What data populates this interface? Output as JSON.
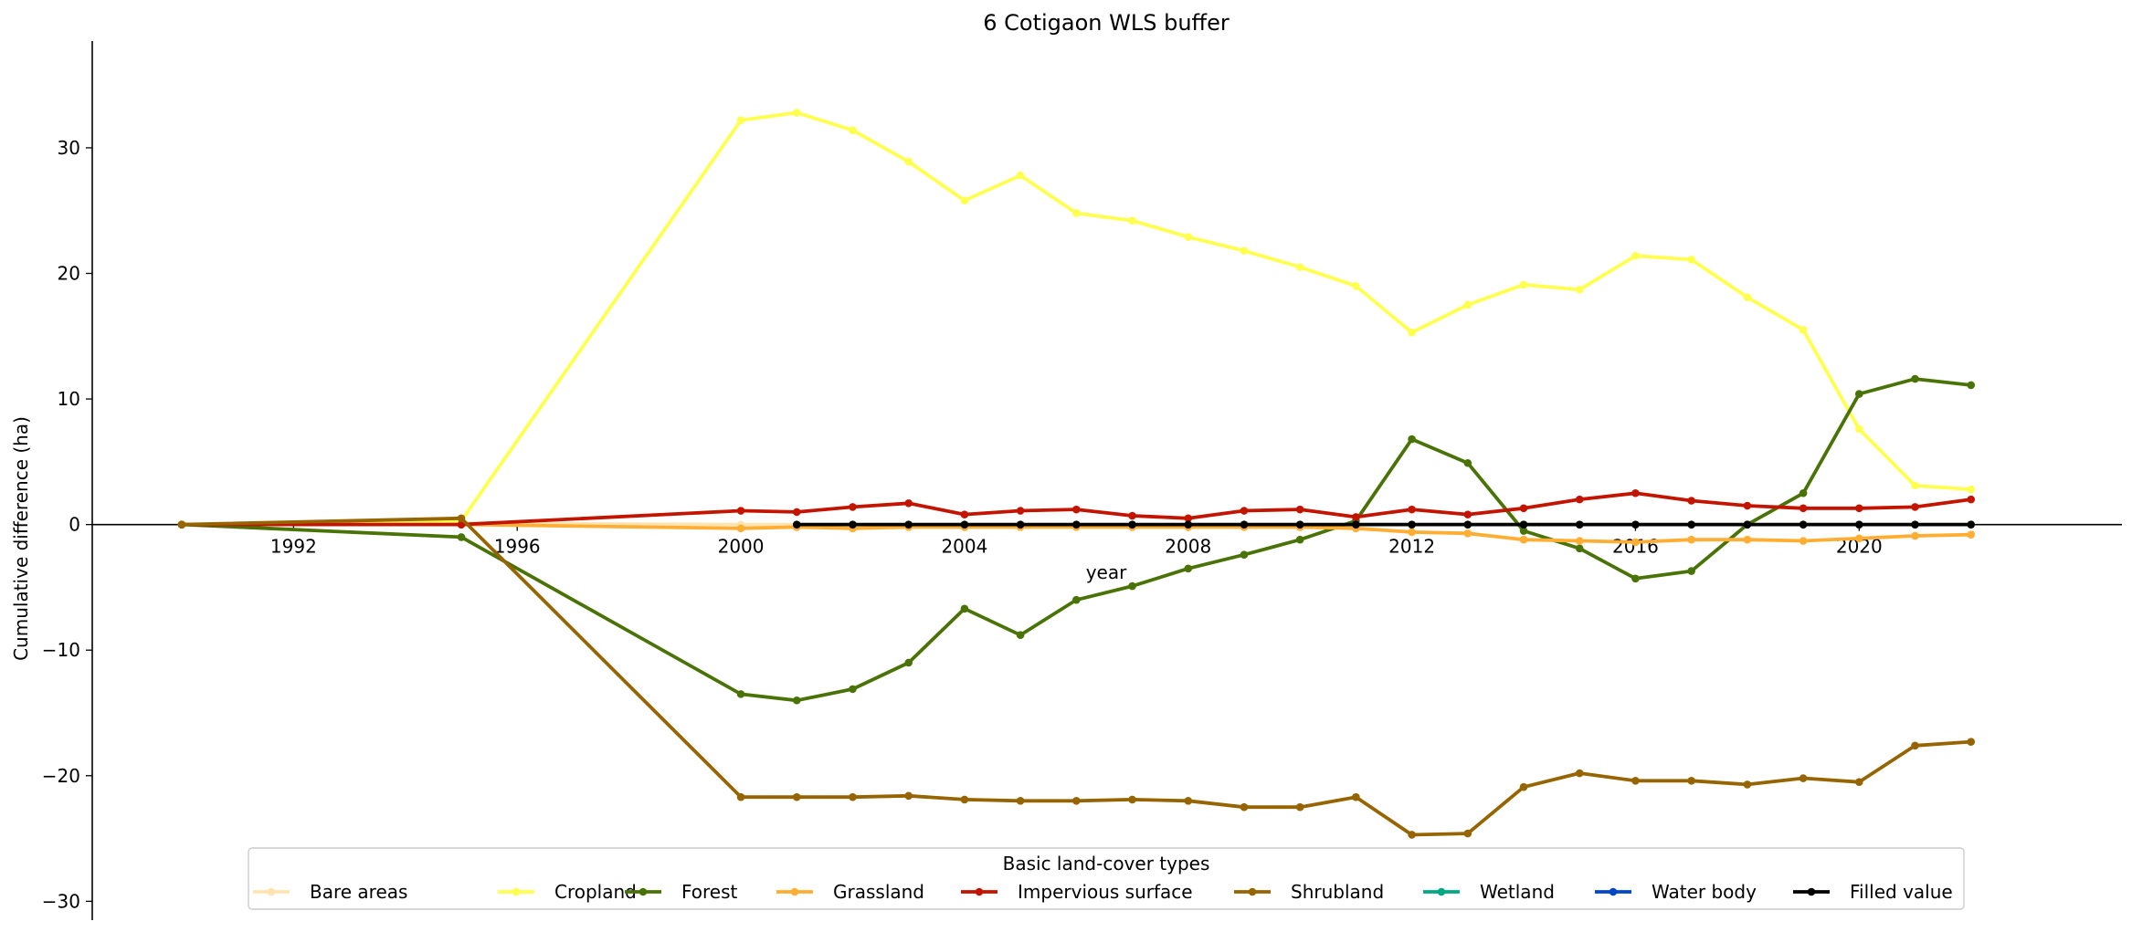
{
  "chart_data": {
    "type": "line",
    "title": "6 Cotigaon WLS buffer",
    "xlabel": "year",
    "ylabel": "Cumulative difference (ha)",
    "xlim": [
      1988.4,
      2024.7
    ],
    "ylim": [
      -31.5,
      38.5
    ],
    "xticks": [
      1992,
      1996,
      2000,
      2004,
      2008,
      2012,
      2016,
      2020
    ],
    "yticks": [
      -30,
      -20,
      -10,
      0,
      10,
      20,
      30
    ],
    "ytick_labels": [
      "−30",
      "−20",
      "−10",
      "0",
      "10",
      "20",
      "30"
    ],
    "legend": {
      "title": "Basic land-cover types",
      "position": "bottom-center"
    },
    "series": [
      {
        "name": "Bare areas",
        "color": "#ffe4b2",
        "points": [
          [
            1990,
            0
          ],
          [
            1995,
            0.1
          ],
          [
            2000,
            0
          ],
          [
            2001,
            0
          ],
          [
            2002,
            0
          ],
          [
            2003,
            0
          ],
          [
            2004,
            0
          ],
          [
            2005,
            0
          ],
          [
            2006,
            0
          ],
          [
            2007,
            0
          ],
          [
            2008,
            0
          ],
          [
            2009,
            0
          ],
          [
            2010,
            0
          ],
          [
            2011,
            0
          ],
          [
            2012,
            0
          ],
          [
            2013,
            0
          ],
          [
            2014,
            0
          ],
          [
            2015,
            0
          ],
          [
            2016,
            0
          ],
          [
            2017,
            0
          ],
          [
            2018,
            0
          ],
          [
            2019,
            0
          ],
          [
            2020,
            0
          ],
          [
            2021,
            0
          ],
          [
            2022,
            0
          ]
        ]
      },
      {
        "name": "Cropland",
        "color": "#ffff4d",
        "points": [
          [
            1990,
            0
          ],
          [
            1995,
            0.3
          ],
          [
            2000,
            32.2
          ],
          [
            2001,
            32.8
          ],
          [
            2002,
            31.4
          ],
          [
            2003,
            28.9
          ],
          [
            2004,
            25.8
          ],
          [
            2005,
            27.8
          ],
          [
            2006,
            24.8
          ],
          [
            2007,
            24.2
          ],
          [
            2008,
            22.9
          ],
          [
            2009,
            21.8
          ],
          [
            2010,
            20.5
          ],
          [
            2011,
            19.0
          ],
          [
            2012,
            15.3
          ],
          [
            2013,
            17.5
          ],
          [
            2014,
            19.1
          ],
          [
            2015,
            18.7
          ],
          [
            2016,
            21.4
          ],
          [
            2017,
            21.1
          ],
          [
            2018,
            18.1
          ],
          [
            2019,
            15.5
          ],
          [
            2020,
            7.6
          ],
          [
            2021,
            3.1
          ],
          [
            2022,
            2.8
          ]
        ]
      },
      {
        "name": "Forest",
        "color": "#4a7307",
        "points": [
          [
            1990,
            0
          ],
          [
            1995,
            -1.0
          ],
          [
            2000,
            -13.5
          ],
          [
            2001,
            -14.0
          ],
          [
            2002,
            -13.1
          ],
          [
            2003,
            -11.0
          ],
          [
            2004,
            -6.7
          ],
          [
            2005,
            -8.8
          ],
          [
            2006,
            -6.0
          ],
          [
            2007,
            -4.9
          ],
          [
            2008,
            -3.5
          ],
          [
            2009,
            -2.4
          ],
          [
            2010,
            -1.2
          ],
          [
            2011,
            0.3
          ],
          [
            2012,
            6.8
          ],
          [
            2013,
            4.9
          ],
          [
            2014,
            -0.5
          ],
          [
            2015,
            -1.9
          ],
          [
            2016,
            -4.3
          ],
          [
            2017,
            -3.7
          ],
          [
            2018,
            0.0
          ],
          [
            2019,
            2.5
          ],
          [
            2020,
            10.4
          ],
          [
            2021,
            11.6
          ],
          [
            2022,
            11.1
          ]
        ]
      },
      {
        "name": "Grassland",
        "color": "#ffae33",
        "points": [
          [
            1990,
            0
          ],
          [
            1995,
            0
          ],
          [
            2000,
            -0.3
          ],
          [
            2001,
            -0.2
          ],
          [
            2002,
            -0.3
          ],
          [
            2003,
            -0.2
          ],
          [
            2004,
            -0.2
          ],
          [
            2005,
            -0.2
          ],
          [
            2006,
            -0.2
          ],
          [
            2007,
            -0.2
          ],
          [
            2008,
            -0.2
          ],
          [
            2009,
            -0.2
          ],
          [
            2010,
            -0.2
          ],
          [
            2011,
            -0.3
          ],
          [
            2012,
            -0.6
          ],
          [
            2013,
            -0.7
          ],
          [
            2014,
            -1.2
          ],
          [
            2015,
            -1.3
          ],
          [
            2016,
            -1.4
          ],
          [
            2017,
            -1.2
          ],
          [
            2018,
            -1.2
          ],
          [
            2019,
            -1.3
          ],
          [
            2020,
            -1.1
          ],
          [
            2021,
            -0.9
          ],
          [
            2022,
            -0.8
          ]
        ]
      },
      {
        "name": "Impervious surface",
        "color": "#c31400",
        "points": [
          [
            1990,
            0
          ],
          [
            1995,
            0
          ],
          [
            2000,
            1.1
          ],
          [
            2001,
            1.0
          ],
          [
            2002,
            1.4
          ],
          [
            2003,
            1.7
          ],
          [
            2004,
            0.8
          ],
          [
            2005,
            1.1
          ],
          [
            2006,
            1.2
          ],
          [
            2007,
            0.7
          ],
          [
            2008,
            0.5
          ],
          [
            2009,
            1.1
          ],
          [
            2010,
            1.2
          ],
          [
            2011,
            0.6
          ],
          [
            2012,
            1.2
          ],
          [
            2013,
            0.8
          ],
          [
            2014,
            1.3
          ],
          [
            2015,
            2.0
          ],
          [
            2016,
            2.5
          ],
          [
            2017,
            1.9
          ],
          [
            2018,
            1.5
          ],
          [
            2019,
            1.3
          ],
          [
            2020,
            1.3
          ],
          [
            2021,
            1.4
          ],
          [
            2022,
            2.0
          ]
        ]
      },
      {
        "name": "Shrubland",
        "color": "#966400",
        "points": [
          [
            1990,
            0
          ],
          [
            1995,
            0.5
          ],
          [
            2000,
            -21.7
          ],
          [
            2001,
            -21.7
          ],
          [
            2002,
            -21.7
          ],
          [
            2003,
            -21.6
          ],
          [
            2004,
            -21.9
          ],
          [
            2005,
            -22.0
          ],
          [
            2006,
            -22.0
          ],
          [
            2007,
            -21.9
          ],
          [
            2008,
            -22.0
          ],
          [
            2009,
            -22.5
          ],
          [
            2010,
            -22.5
          ],
          [
            2011,
            -21.7
          ],
          [
            2012,
            -24.7
          ],
          [
            2013,
            -24.6
          ],
          [
            2014,
            -20.9
          ],
          [
            2015,
            -19.8
          ],
          [
            2016,
            -20.4
          ],
          [
            2017,
            -20.4
          ],
          [
            2018,
            -20.7
          ],
          [
            2019,
            -20.2
          ],
          [
            2020,
            -20.5
          ],
          [
            2021,
            -17.6
          ],
          [
            2022,
            -17.3
          ]
        ]
      },
      {
        "name": "Wetland",
        "color": "#00a884",
        "points": []
      },
      {
        "name": "Water body",
        "color": "#0046c8",
        "points": []
      },
      {
        "name": "Filled value",
        "color": "#000000",
        "points": [
          [
            2001,
            0
          ],
          [
            2002,
            0
          ],
          [
            2003,
            0
          ],
          [
            2004,
            0
          ],
          [
            2005,
            0
          ],
          [
            2006,
            0
          ],
          [
            2007,
            0
          ],
          [
            2008,
            0
          ],
          [
            2009,
            0
          ],
          [
            2010,
            0
          ],
          [
            2011,
            0
          ],
          [
            2012,
            0
          ],
          [
            2013,
            0
          ],
          [
            2014,
            0
          ],
          [
            2015,
            0
          ],
          [
            2016,
            0
          ],
          [
            2017,
            0
          ],
          [
            2018,
            0
          ],
          [
            2019,
            0
          ],
          [
            2020,
            0
          ],
          [
            2021,
            0
          ],
          [
            2022,
            0
          ]
        ]
      }
    ]
  }
}
